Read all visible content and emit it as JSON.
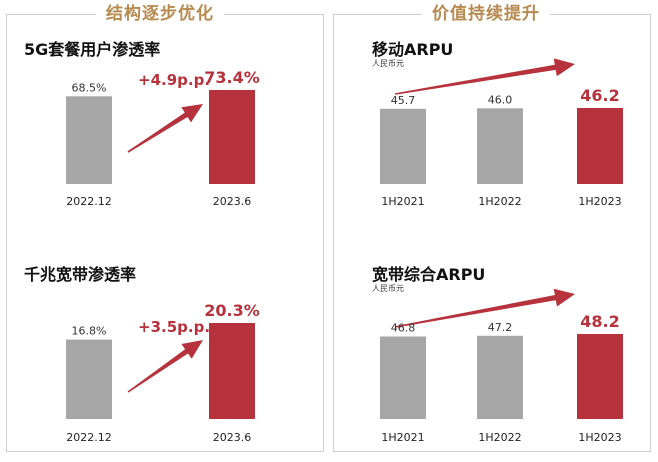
{
  "panels": [
    {
      "title": "结构逐步优化"
    },
    {
      "title": "价值持续提升"
    }
  ],
  "colors": {
    "grey": "#a6a6a6",
    "red": "#b6323c",
    "title_gold": "#b78a4f"
  },
  "chart_data": [
    {
      "type": "bar",
      "title": "5G套餐用户渗透率",
      "subtitle": "",
      "categories": [
        "2022.12",
        "2023.6"
      ],
      "values": [
        68.5,
        73.4
      ],
      "value_labels": [
        "68.5%",
        "73.4%"
      ],
      "highlight_index": 1,
      "annotation": "+4.9p.p.",
      "ylim": [
        0,
        80
      ]
    },
    {
      "type": "bar",
      "title": "移动ARPU",
      "subtitle": "人民币元",
      "categories": [
        "1H2021",
        "1H2022",
        "1H2023"
      ],
      "values": [
        45.7,
        46.0,
        46.2
      ],
      "value_labels": [
        "45.7",
        "46.0",
        "46.2"
      ],
      "highlight_index": 2,
      "annotation": "",
      "ylim": [
        0,
        50
      ]
    },
    {
      "type": "bar",
      "title": "千兆宽带渗透率",
      "subtitle": "",
      "categories": [
        "2022.12",
        "2023.6"
      ],
      "values": [
        16.8,
        20.3
      ],
      "value_labels": [
        "16.8%",
        "20.3%"
      ],
      "highlight_index": 1,
      "annotation": "+3.5p.p.",
      "ylim": [
        0,
        22
      ]
    },
    {
      "type": "bar",
      "title": "宽带综合ARPU",
      "subtitle": "人民币元",
      "categories": [
        "1H2021",
        "1H2022",
        "1H2023"
      ],
      "values": [
        46.8,
        47.2,
        48.2
      ],
      "value_labels": [
        "46.8",
        "47.2",
        "48.2"
      ],
      "highlight_index": 2,
      "annotation": "",
      "ylim": [
        0,
        55
      ]
    }
  ]
}
